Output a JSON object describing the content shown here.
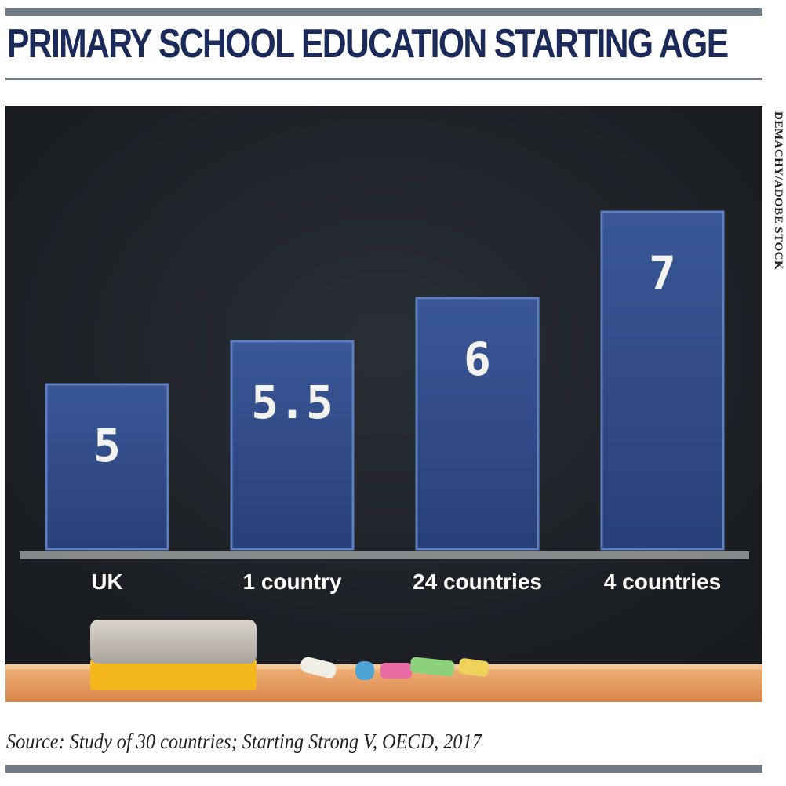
{
  "header": {
    "title": "PRIMARY SCHOOL EDUCATION STARTING AGE"
  },
  "credit": "DEMACHY/ADOBE STOCK",
  "source": "Source: Study of 30 countries; Starting Strong V, OECD, 2017",
  "chart_data": {
    "type": "bar",
    "categories": [
      "UK",
      "1 country",
      "24 countries",
      "4 countries"
    ],
    "values": [
      5,
      5.5,
      6,
      7
    ],
    "value_labels": [
      "5",
      "5.5",
      "6",
      "7"
    ],
    "title": "PRIMARY SCHOOL EDUCATION STARTING AGE",
    "xlabel": "",
    "ylabel": "",
    "ylim": [
      0,
      7.5
    ],
    "grid": false,
    "legend": "none",
    "colors": {
      "bar": "#2d4a86",
      "board": "#1d2126",
      "chalk": "#f2f2ee",
      "title": "#1b2b59"
    }
  }
}
